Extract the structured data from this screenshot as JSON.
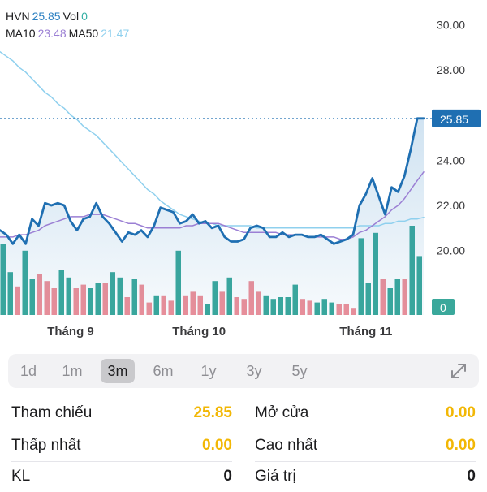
{
  "legend": {
    "ticker": "HVN",
    "price": "25.85",
    "vol_label": "Vol",
    "vol_value": "0",
    "ma10_label": "MA10",
    "ma10_value": "23.48",
    "ma50_label": "MA50",
    "ma50_value": "21.47"
  },
  "colors": {
    "price_line": "#1f6fb2",
    "ma10": "#9b7fd4",
    "ma50": "#8fd0ee",
    "vol_up": "#3aa89b",
    "vol_down": "#ee8f98",
    "accent": "#1f6fb2",
    "ref_yellow": "#f2b705"
  },
  "chart_data": {
    "type": "line",
    "ylim": [
      18.8,
      30.3
    ],
    "y_ticks": [
      "30.00",
      "28.00",
      "24.00",
      "22.00",
      "20.00"
    ],
    "x_tick_labels": [
      "Tháng 9",
      "Tháng 10",
      "Tháng 11"
    ],
    "x_tick_index": [
      11,
      31,
      57
    ],
    "last_price_label": "25.85",
    "volume_label": "0",
    "series": [
      {
        "key": "price",
        "values": [
          20.9,
          20.7,
          20.3,
          20.7,
          20.3,
          21.4,
          21.1,
          22.1,
          22.0,
          22.1,
          22.0,
          21.3,
          20.9,
          21.4,
          21.5,
          22.1,
          21.5,
          21.2,
          20.8,
          20.4,
          20.8,
          20.7,
          20.9,
          20.6,
          21.1,
          21.9,
          21.8,
          21.7,
          21.2,
          21.3,
          21.6,
          21.2,
          21.3,
          21.0,
          21.1,
          20.6,
          20.4,
          20.4,
          20.5,
          21.0,
          21.1,
          21.0,
          20.6,
          20.6,
          20.8,
          20.6,
          20.7,
          20.7,
          20.6,
          20.6,
          20.7,
          20.5,
          20.3,
          20.4,
          20.5,
          20.7,
          22.0,
          22.5,
          23.2,
          22.4,
          21.6,
          22.8,
          22.6,
          23.3,
          24.5,
          25.85,
          25.85
        ]
      },
      {
        "key": "ma10",
        "values": [
          20.6,
          20.6,
          20.6,
          20.7,
          20.7,
          20.8,
          20.9,
          21.1,
          21.2,
          21.3,
          21.4,
          21.5,
          21.5,
          21.5,
          21.6,
          21.6,
          21.6,
          21.5,
          21.4,
          21.3,
          21.2,
          21.2,
          21.1,
          21.0,
          21.0,
          21.0,
          21.0,
          21.0,
          21.0,
          21.1,
          21.1,
          21.2,
          21.2,
          21.2,
          21.2,
          21.1,
          21.0,
          20.9,
          20.8,
          20.8,
          20.8,
          20.8,
          20.8,
          20.8,
          20.7,
          20.7,
          20.7,
          20.7,
          20.6,
          20.6,
          20.6,
          20.6,
          20.6,
          20.5,
          20.5,
          20.6,
          20.8,
          20.9,
          21.1,
          21.3,
          21.5,
          21.8,
          22.0,
          22.3,
          22.7,
          23.1,
          23.48
        ]
      },
      {
        "key": "ma50",
        "values": [
          28.8,
          28.6,
          28.4,
          28.1,
          27.9,
          27.6,
          27.3,
          27.0,
          26.8,
          26.5,
          26.3,
          26.0,
          25.8,
          25.5,
          25.3,
          25.1,
          24.8,
          24.5,
          24.2,
          23.9,
          23.6,
          23.3,
          23.0,
          22.7,
          22.5,
          22.2,
          22.0,
          21.8,
          21.6,
          21.5,
          21.4,
          21.3,
          21.2,
          21.2,
          21.1,
          21.1,
          21.1,
          21.1,
          21.1,
          21.1,
          21.0,
          21.0,
          21.0,
          21.0,
          21.0,
          21.0,
          21.0,
          21.0,
          21.0,
          21.0,
          21.0,
          21.0,
          21.0,
          21.0,
          21.0,
          21.0,
          21.1,
          21.1,
          21.1,
          21.1,
          21.2,
          21.2,
          21.3,
          21.3,
          21.4,
          21.4,
          21.47
        ]
      }
    ],
    "volume_bars": [
      {
        "h": 0.8,
        "up": true
      },
      {
        "h": 0.48,
        "up": true
      },
      {
        "h": 0.32,
        "up": false
      },
      {
        "h": 0.72,
        "up": true
      },
      {
        "h": 0.4,
        "up": true
      },
      {
        "h": 0.46,
        "up": false
      },
      {
        "h": 0.38,
        "up": false
      },
      {
        "h": 0.3,
        "up": false
      },
      {
        "h": 0.5,
        "up": true
      },
      {
        "h": 0.42,
        "up": true
      },
      {
        "h": 0.3,
        "up": false
      },
      {
        "h": 0.34,
        "up": false
      },
      {
        "h": 0.3,
        "up": true
      },
      {
        "h": 0.36,
        "up": true
      },
      {
        "h": 0.36,
        "up": false
      },
      {
        "h": 0.48,
        "up": true
      },
      {
        "h": 0.42,
        "up": true
      },
      {
        "h": 0.2,
        "up": false
      },
      {
        "h": 0.4,
        "up": true
      },
      {
        "h": 0.34,
        "up": false
      },
      {
        "h": 0.14,
        "up": false
      },
      {
        "h": 0.22,
        "up": true
      },
      {
        "h": 0.22,
        "up": false
      },
      {
        "h": 0.16,
        "up": false
      },
      {
        "h": 0.72,
        "up": true
      },
      {
        "h": 0.22,
        "up": false
      },
      {
        "h": 0.26,
        "up": false
      },
      {
        "h": 0.22,
        "up": false
      },
      {
        "h": 0.12,
        "up": true
      },
      {
        "h": 0.38,
        "up": true
      },
      {
        "h": 0.26,
        "up": false
      },
      {
        "h": 0.42,
        "up": true
      },
      {
        "h": 0.2,
        "up": false
      },
      {
        "h": 0.18,
        "up": false
      },
      {
        "h": 0.38,
        "up": false
      },
      {
        "h": 0.26,
        "up": false
      },
      {
        "h": 0.22,
        "up": true
      },
      {
        "h": 0.18,
        "up": true
      },
      {
        "h": 0.2,
        "up": true
      },
      {
        "h": 0.2,
        "up": true
      },
      {
        "h": 0.34,
        "up": true
      },
      {
        "h": 0.18,
        "up": false
      },
      {
        "h": 0.16,
        "up": false
      },
      {
        "h": 0.14,
        "up": true
      },
      {
        "h": 0.18,
        "up": true
      },
      {
        "h": 0.14,
        "up": true
      },
      {
        "h": 0.12,
        "up": false
      },
      {
        "h": 0.12,
        "up": false
      },
      {
        "h": 0.08,
        "up": false
      },
      {
        "h": 0.86,
        "up": true
      },
      {
        "h": 0.36,
        "up": true
      },
      {
        "h": 0.92,
        "up": true
      },
      {
        "h": 0.4,
        "up": false
      },
      {
        "h": 0.3,
        "up": true
      },
      {
        "h": 0.4,
        "up": true
      },
      {
        "h": 0.4,
        "up": false
      },
      {
        "h": 1.0,
        "up": true
      },
      {
        "h": 0.66,
        "up": true
      }
    ]
  },
  "timeframes": [
    "1d",
    "1m",
    "3m",
    "6m",
    "1y",
    "3y",
    "5y"
  ],
  "timeframe_active": "3m",
  "expand_icon": "expand-arrows-icon",
  "stats": {
    "ref_label": "Tham chiếu",
    "ref_value": "25.85",
    "open_label": "Mở cửa",
    "open_value": "0.00",
    "low_label": "Thấp nhất",
    "low_value": "0.00",
    "high_label": "Cao nhất",
    "high_value": "0.00",
    "vol_label": "KL",
    "vol_value": "0",
    "val_label": "Giá trị",
    "val_value": "0"
  }
}
